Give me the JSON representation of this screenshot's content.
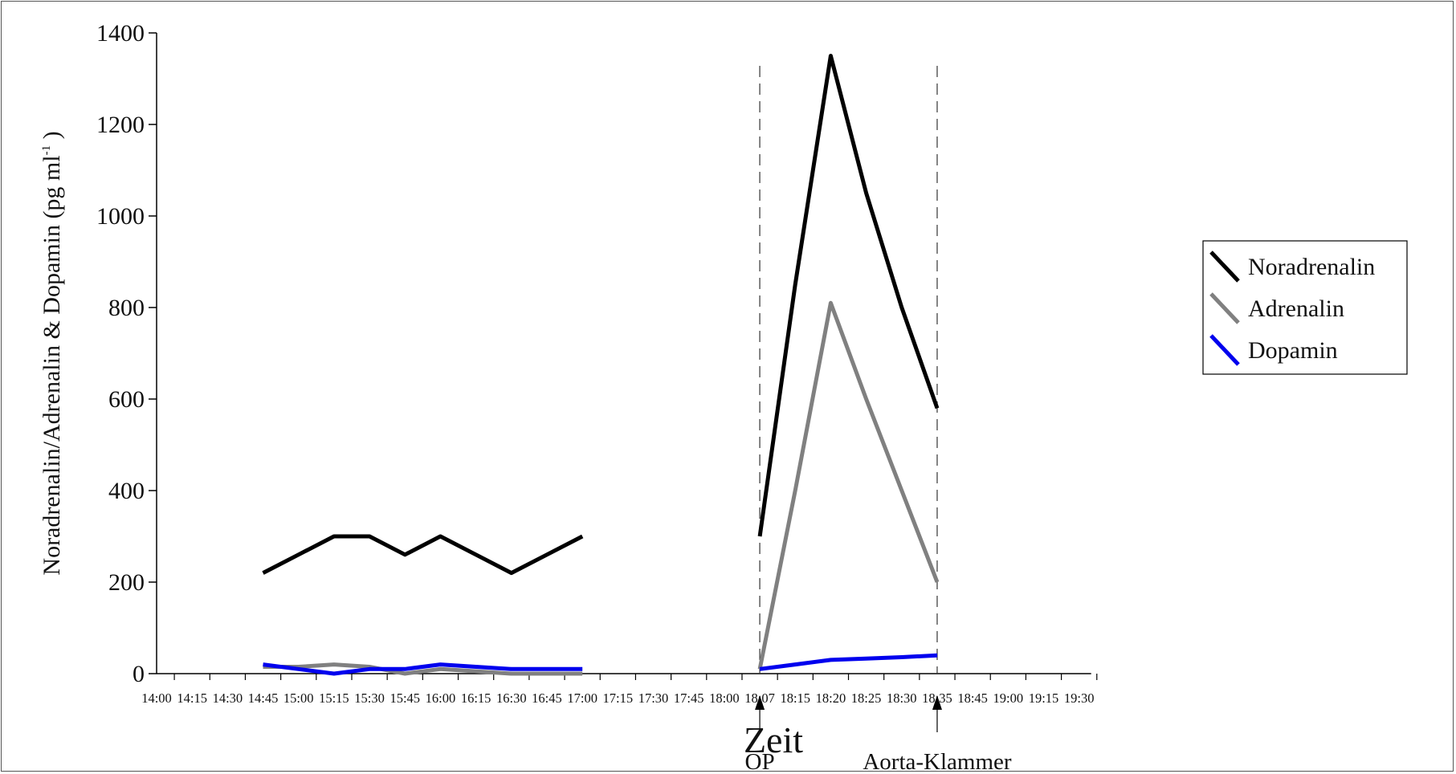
{
  "chart_data": {
    "type": "line",
    "title": "",
    "xlabel": "Zeit",
    "ylabel": "Noradrenalin/Adrenalin & Dopamin (pg ml",
    "ylabel_sup": "-1",
    "ylabel_close": " )",
    "ylim": [
      0,
      1400
    ],
    "yticks": [
      0,
      200,
      400,
      600,
      800,
      1000,
      1200,
      1400
    ],
    "categories": [
      "14:00",
      "14:15",
      "14:30",
      "14:45",
      "15:00",
      "15:15",
      "15:30",
      "15:45",
      "16:00",
      "16:15",
      "16:30",
      "16:45",
      "17:00",
      "17:15",
      "17:30",
      "17:45",
      "18:00",
      "18:07",
      "18:15",
      "18:20",
      "18:25",
      "18:30",
      "18:35",
      "18:45",
      "19:00",
      "19:15",
      "19:30"
    ],
    "series": [
      {
        "name": "Noradrenalin",
        "color": "#000000",
        "values": [
          null,
          null,
          null,
          220,
          260,
          300,
          300,
          260,
          300,
          260,
          220,
          260,
          300,
          null,
          null,
          null,
          null,
          300,
          850,
          1350,
          1050,
          800,
          580,
          null,
          null,
          null,
          null
        ]
      },
      {
        "name": "Adrenalin",
        "color": "#808080",
        "values": [
          null,
          null,
          null,
          15,
          15,
          20,
          15,
          0,
          10,
          5,
          0,
          0,
          0,
          null,
          null,
          null,
          null,
          10,
          400,
          810,
          600,
          400,
          200,
          null,
          null,
          null,
          null
        ]
      },
      {
        "name": "Dopamin",
        "color": "#0000ee",
        "values": [
          null,
          null,
          null,
          20,
          10,
          0,
          10,
          10,
          20,
          15,
          10,
          10,
          10,
          null,
          null,
          null,
          null,
          10,
          20,
          30,
          33,
          36,
          40,
          null,
          null,
          null,
          null
        ]
      }
    ],
    "markers": [
      {
        "at": "18:07",
        "label": "OP"
      },
      {
        "at": "18:35",
        "label": "Aorta-Klammer"
      }
    ],
    "legend_position": "right",
    "grid": false
  }
}
